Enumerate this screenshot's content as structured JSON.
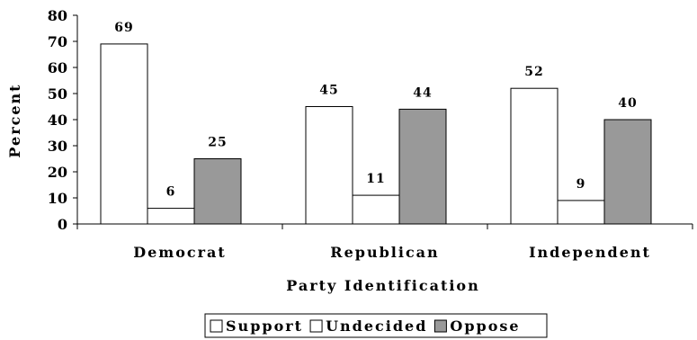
{
  "chart_data": {
    "type": "bar",
    "title": "",
    "xlabel": "Party Identification",
    "ylabel": "Percent",
    "ylim": [
      0,
      80
    ],
    "yticks": [
      0,
      10,
      20,
      30,
      40,
      50,
      60,
      70,
      80
    ],
    "categories": [
      "Democrat",
      "Republican",
      "Independent"
    ],
    "series": [
      {
        "name": "Support",
        "values": [
          69,
          45,
          52
        ],
        "color": "#ffffff"
      },
      {
        "name": "Undecided",
        "values": [
          6,
          11,
          9
        ],
        "color": "#ffffff"
      },
      {
        "name": "Oppose",
        "values": [
          25,
          44,
          40
        ],
        "color": "#999999"
      }
    ],
    "grid": false,
    "legend": "bottom"
  }
}
